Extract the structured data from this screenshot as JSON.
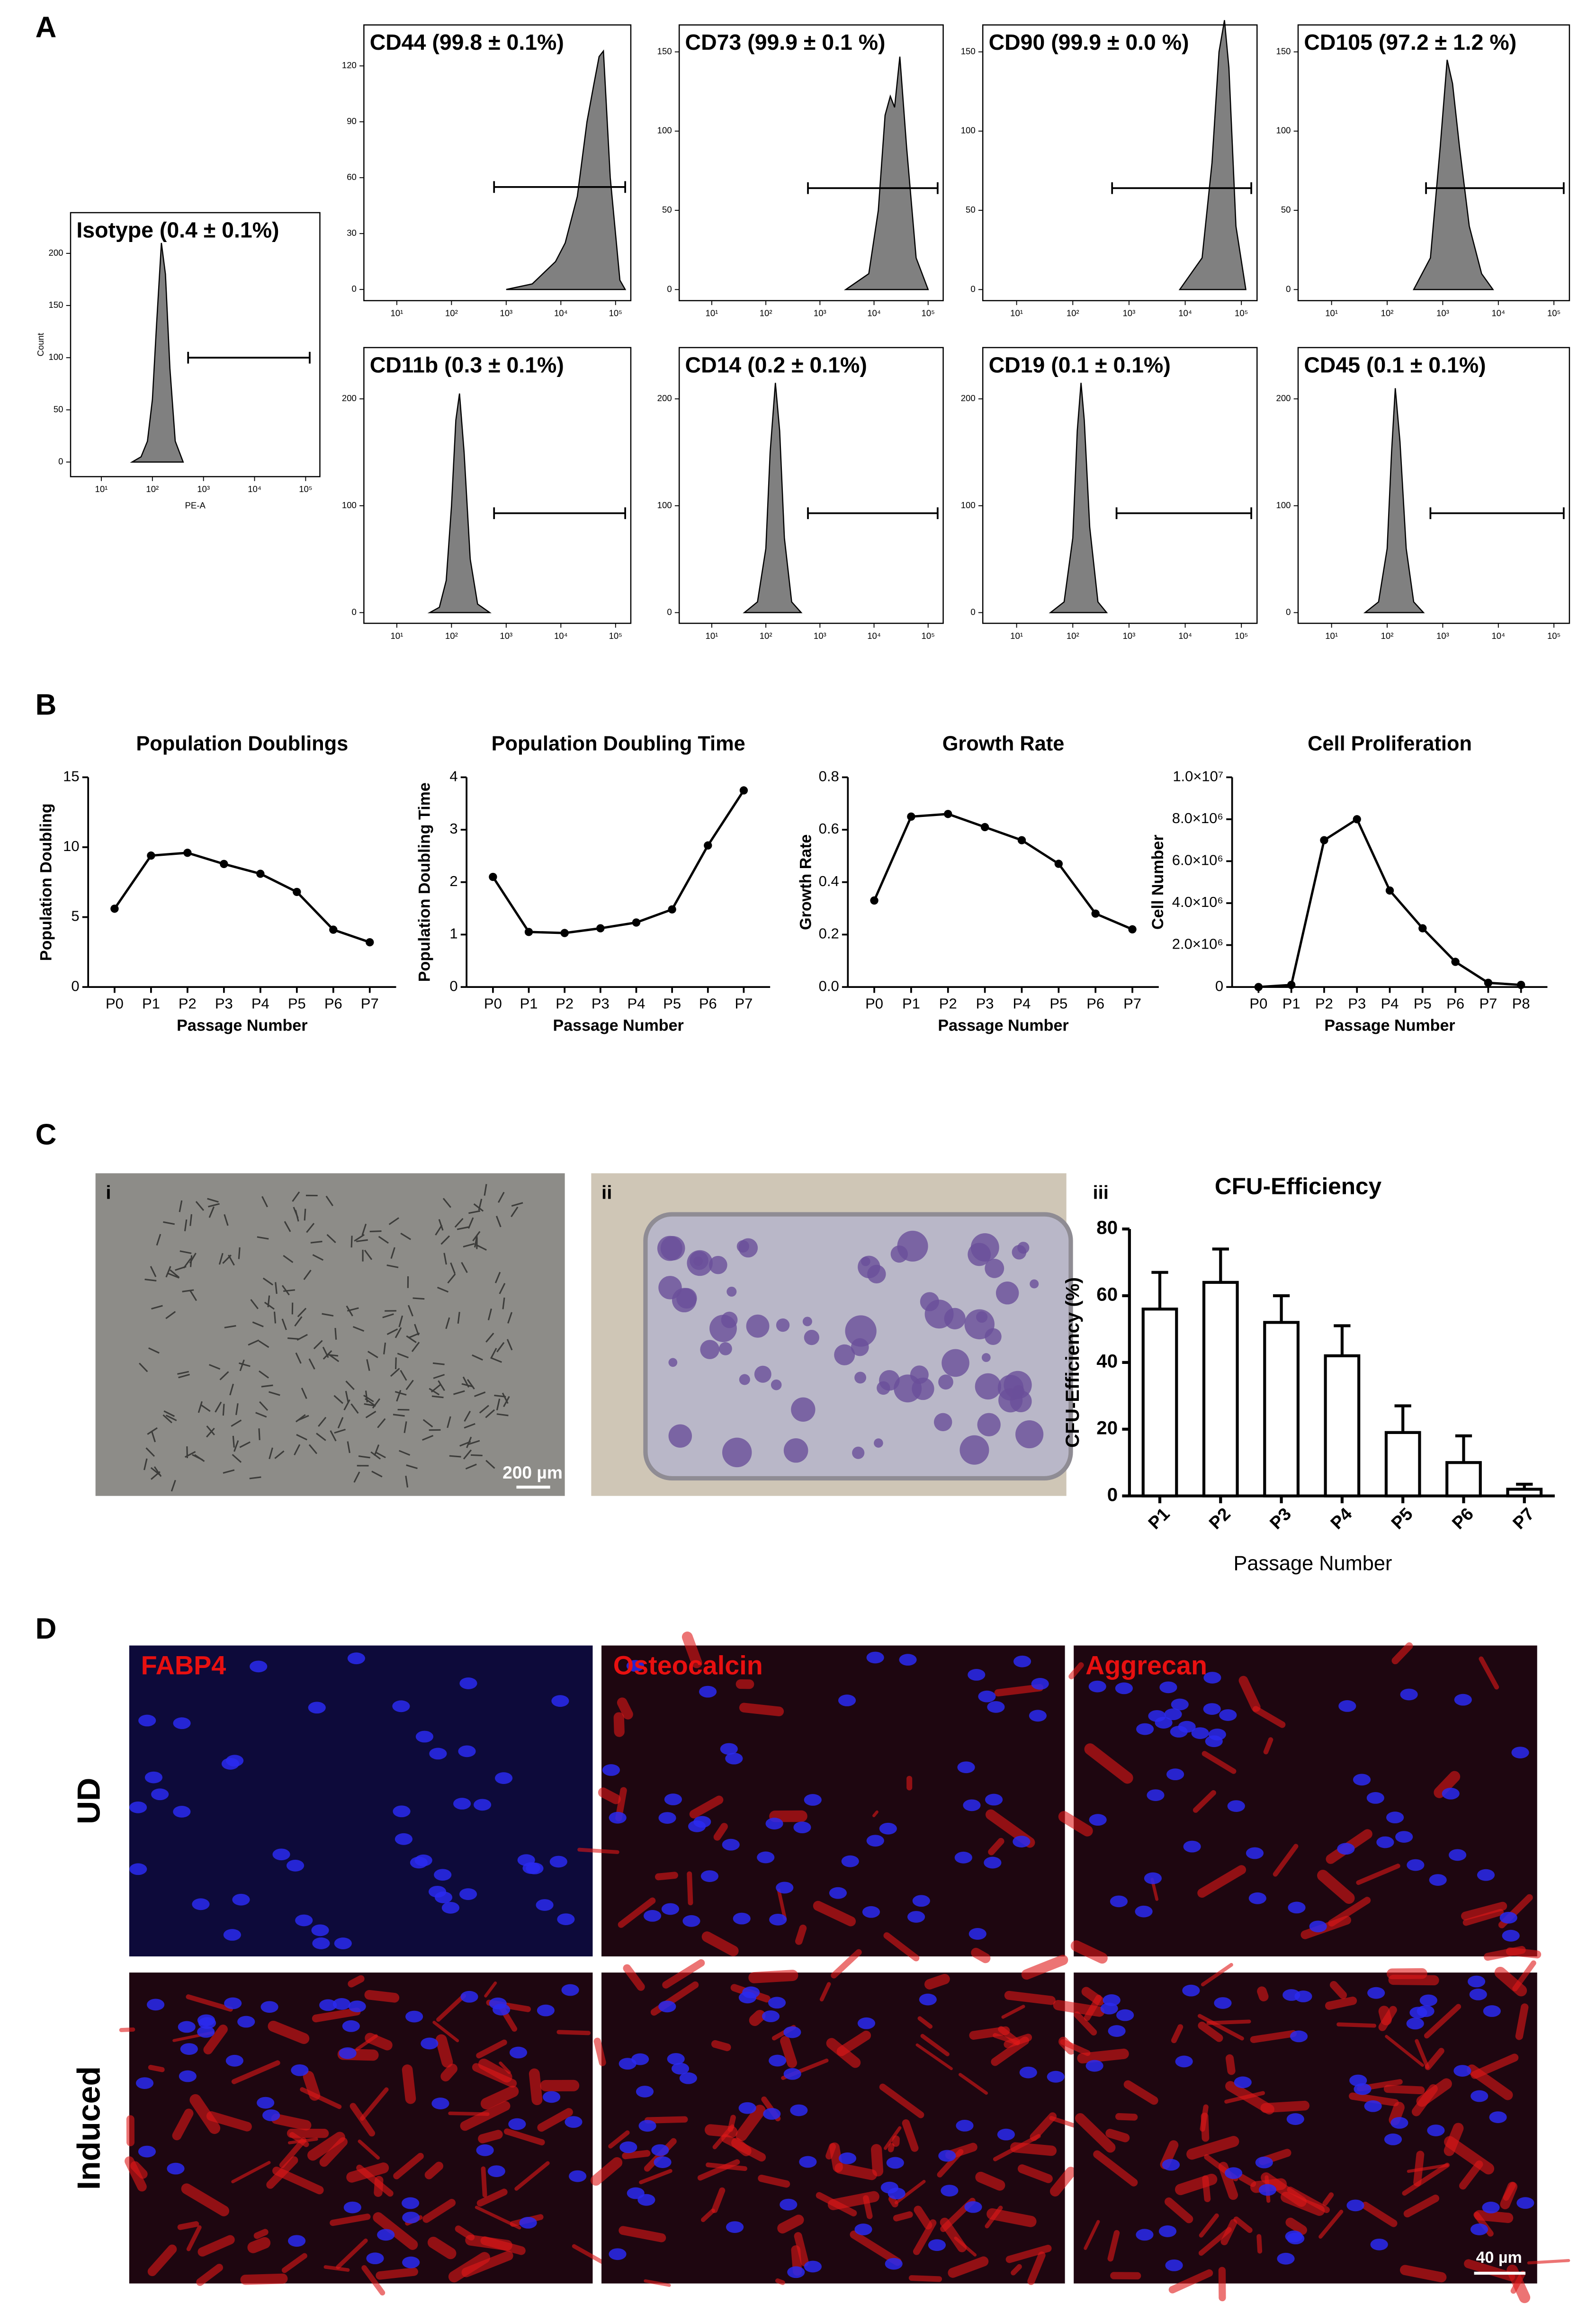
{
  "panel_labels": [
    "A",
    "B",
    "C",
    "D"
  ],
  "photos": {
    "colony_label": "i",
    "flask_label": "ii",
    "scale_bar": "200 µm"
  },
  "staining": {
    "columns": [
      "FABP4",
      "Osteocalcin",
      "Aggrecan"
    ],
    "rows": [
      "UD",
      "Induced"
    ],
    "scale_bar": "40 µm"
  },
  "chart_data": [
    {
      "type": "area",
      "xscale": "log",
      "title": "Isotype (0.4 ± 0.1%)",
      "xlabel": "PE-A",
      "ylabel": "Count",
      "color": "#808080",
      "x": [
        40,
        60,
        80,
        100,
        120,
        150,
        180,
        220,
        280,
        400
      ],
      "values": [
        0,
        5,
        20,
        60,
        130,
        210,
        180,
        90,
        20,
        0
      ],
      "gate": {
        "from": 500,
        "to": 120000,
        "level": 100
      },
      "xlim": [
        2.5,
        190000
      ],
      "ylim": [
        -14,
        239
      ],
      "xticks": [
        {
          "value": 10,
          "label": "10¹"
        },
        {
          "value": 100,
          "label": "10²"
        },
        {
          "value": 1000,
          "label": "10³"
        },
        {
          "value": 10000,
          "label": "10⁴"
        },
        {
          "value": 100000,
          "label": "10⁵"
        }
      ],
      "yticks": [
        0,
        50,
        100,
        150,
        200
      ]
    },
    {
      "type": "area",
      "xscale": "log",
      "title": "CD44 (99.8 ± 0.1%)",
      "color": "#808080",
      "x": [
        1000,
        3000,
        8000,
        12000,
        20000,
        30000,
        40000,
        50000,
        60000,
        80000,
        120000,
        150000
      ],
      "values": [
        0,
        3,
        15,
        25,
        50,
        90,
        110,
        125,
        128,
        60,
        5,
        0
      ],
      "gate": {
        "from": 600,
        "to": 150000,
        "level": 55
      },
      "xlim": [
        2.5,
        190000
      ],
      "ylim": [
        -6,
        142
      ],
      "xticks": [
        {
          "value": 10,
          "label": "10¹"
        },
        {
          "value": 100,
          "label": "10²"
        },
        {
          "value": 1000,
          "label": "10³"
        },
        {
          "value": 10000,
          "label": "10⁴"
        },
        {
          "value": 100000,
          "label": "10⁵"
        }
      ],
      "yticks": [
        0,
        30,
        60,
        90,
        120
      ]
    },
    {
      "type": "area",
      "xscale": "log",
      "title": "CD73 (99.9 ± 0.1 %)",
      "color": "#808080",
      "x": [
        3000,
        8000,
        12000,
        16000,
        20000,
        24000,
        30000,
        40000,
        60000,
        100000
      ],
      "values": [
        0,
        10,
        50,
        110,
        122,
        115,
        147,
        90,
        20,
        0
      ],
      "gate": {
        "from": 600,
        "to": 150000,
        "level": 64
      },
      "xlim": [
        2.5,
        190000
      ],
      "ylim": [
        -7,
        167
      ],
      "xticks": [
        {
          "value": 10,
          "label": "10¹"
        },
        {
          "value": 100,
          "label": "10²"
        },
        {
          "value": 1000,
          "label": "10³"
        },
        {
          "value": 10000,
          "label": "10⁴"
        },
        {
          "value": 100000,
          "label": "10⁵"
        }
      ],
      "yticks": [
        0,
        50,
        100,
        150
      ]
    },
    {
      "type": "area",
      "xscale": "log",
      "title": "CD90 (99.9 ± 0.0 %)",
      "color": "#808080",
      "x": [
        8000,
        20000,
        30000,
        40000,
        50000,
        60000,
        80000,
        120000
      ],
      "values": [
        0,
        20,
        80,
        150,
        170,
        140,
        40,
        0
      ],
      "gate": {
        "from": 500,
        "to": 150000,
        "level": 64
      },
      "xlim": [
        2.5,
        190000
      ],
      "ylim": [
        -7,
        167
      ],
      "xticks": [
        {
          "value": 10,
          "label": "10¹"
        },
        {
          "value": 100,
          "label": "10²"
        },
        {
          "value": 1000,
          "label": "10³"
        },
        {
          "value": 10000,
          "label": "10⁴"
        },
        {
          "value": 100000,
          "label": "10⁵"
        }
      ],
      "yticks": [
        0,
        50,
        100,
        150
      ]
    },
    {
      "type": "area",
      "xscale": "log",
      "title": "CD105 (97.2 ± 1.2 %)",
      "color": "#808080",
      "x": [
        300,
        600,
        900,
        1200,
        1500,
        2000,
        3000,
        5000,
        8000
      ],
      "values": [
        0,
        20,
        90,
        145,
        130,
        90,
        40,
        10,
        0
      ],
      "gate": {
        "from": 500,
        "to": 150000,
        "level": 64
      },
      "xlim": [
        2.5,
        190000
      ],
      "ylim": [
        -7,
        167
      ],
      "xticks": [
        {
          "value": 10,
          "label": "10¹"
        },
        {
          "value": 100,
          "label": "10²"
        },
        {
          "value": 1000,
          "label": "10³"
        },
        {
          "value": 10000,
          "label": "10⁴"
        },
        {
          "value": 100000,
          "label": "10⁵"
        }
      ],
      "yticks": [
        0,
        50,
        100,
        150
      ]
    },
    {
      "type": "area",
      "xscale": "log",
      "title": "CD11b (0.3 ± 0.1%)",
      "color": "#808080",
      "x": [
        40,
        60,
        80,
        100,
        120,
        140,
        170,
        220,
        300,
        500
      ],
      "values": [
        0,
        5,
        30,
        100,
        180,
        205,
        150,
        50,
        8,
        0
      ],
      "gate": {
        "from": 600,
        "to": 150000,
        "level": 93
      },
      "xlim": [
        2.5,
        190000
      ],
      "ylim": [
        -10,
        248
      ],
      "xticks": [
        {
          "value": 10,
          "label": "10¹"
        },
        {
          "value": 100,
          "label": "10²"
        },
        {
          "value": 1000,
          "label": "10³"
        },
        {
          "value": 10000,
          "label": "10⁴"
        },
        {
          "value": 100000,
          "label": "10⁵"
        }
      ],
      "yticks": [
        0,
        100,
        200
      ]
    },
    {
      "type": "area",
      "xscale": "log",
      "title": "CD14 (0.2 ± 0.1%)",
      "color": "#808080",
      "x": [
        40,
        70,
        100,
        120,
        150,
        180,
        220,
        300,
        450
      ],
      "values": [
        0,
        10,
        60,
        150,
        215,
        170,
        70,
        10,
        0
      ],
      "gate": {
        "from": 600,
        "to": 150000,
        "level": 93
      },
      "xlim": [
        2.5,
        190000
      ],
      "ylim": [
        -10,
        248
      ],
      "xticks": [
        {
          "value": 10,
          "label": "10¹"
        },
        {
          "value": 100,
          "label": "10²"
        },
        {
          "value": 1000,
          "label": "10³"
        },
        {
          "value": 10000,
          "label": "10⁴"
        },
        {
          "value": 100000,
          "label": "10⁵"
        }
      ],
      "yticks": [
        0,
        100,
        200
      ]
    },
    {
      "type": "area",
      "xscale": "log",
      "title": "CD19 (0.1 ± 0.1%)",
      "color": "#808080",
      "x": [
        40,
        70,
        100,
        120,
        140,
        160,
        200,
        280,
        400
      ],
      "values": [
        0,
        10,
        70,
        170,
        215,
        180,
        80,
        10,
        0
      ],
      "gate": {
        "from": 600,
        "to": 150000,
        "level": 93
      },
      "xlim": [
        2.5,
        190000
      ],
      "ylim": [
        -10,
        248
      ],
      "xticks": [
        {
          "value": 10,
          "label": "10¹"
        },
        {
          "value": 100,
          "label": "10²"
        },
        {
          "value": 1000,
          "label": "10³"
        },
        {
          "value": 10000,
          "label": "10⁴"
        },
        {
          "value": 100000,
          "label": "10⁵"
        }
      ],
      "yticks": [
        0,
        100,
        200
      ]
    },
    {
      "type": "area",
      "xscale": "log",
      "title": "CD45 (0.1 ± 0.1%)",
      "color": "#808080",
      "x": [
        40,
        70,
        100,
        120,
        140,
        170,
        220,
        300,
        450
      ],
      "values": [
        0,
        10,
        60,
        150,
        210,
        160,
        60,
        10,
        0
      ],
      "gate": {
        "from": 600,
        "to": 150000,
        "level": 93
      },
      "xlim": [
        2.5,
        190000
      ],
      "ylim": [
        -10,
        248
      ],
      "xticks": [
        {
          "value": 10,
          "label": "10¹"
        },
        {
          "value": 100,
          "label": "10²"
        },
        {
          "value": 1000,
          "label": "10³"
        },
        {
          "value": 10000,
          "label": "10⁴"
        },
        {
          "value": 100000,
          "label": "10⁵"
        }
      ],
      "yticks": [
        0,
        100,
        200
      ]
    },
    {
      "type": "line",
      "title": "Population Doublings",
      "xlabel": "Passage Number",
      "ylabel": "Population Doubling",
      "color": "#000000",
      "categories": [
        "P0",
        "P1",
        "P2",
        "P3",
        "P4",
        "P5",
        "P6",
        "P7"
      ],
      "values": [
        5.6,
        9.4,
        9.6,
        8.8,
        8.1,
        6.8,
        4.1,
        3.2
      ],
      "ylim": [
        0,
        15
      ],
      "yticks": [
        0,
        5,
        10,
        15
      ]
    },
    {
      "type": "line",
      "title": "Population Doubling Time",
      "xlabel": "Passage Number",
      "ylabel": "Population Doubling Time",
      "color": "#000000",
      "categories": [
        "P0",
        "P1",
        "P2",
        "P3",
        "P4",
        "P5",
        "P6",
        "P7"
      ],
      "values": [
        2.1,
        1.05,
        1.03,
        1.12,
        1.23,
        1.48,
        2.7,
        3.75
      ],
      "ylim": [
        0,
        4
      ],
      "yticks": [
        0,
        1,
        2,
        3,
        4
      ]
    },
    {
      "type": "line",
      "title": "Growth Rate",
      "xlabel": "Passage Number",
      "ylabel": "Growth Rate",
      "color": "#000000",
      "categories": [
        "P0",
        "P1",
        "P2",
        "P3",
        "P4",
        "P5",
        "P6",
        "P7"
      ],
      "values": [
        0.33,
        0.65,
        0.66,
        0.61,
        0.56,
        0.47,
        0.28,
        0.22
      ],
      "ylim": [
        0,
        0.8
      ],
      "yticks": [
        {
          "value": 0,
          "label": "0.0"
        },
        0.2,
        0.4,
        0.6,
        0.8
      ]
    },
    {
      "type": "line",
      "title": "Cell Proliferation",
      "xlabel": "Passage Number",
      "ylabel": "Cell Number",
      "color": "#000000",
      "categories": [
        "P0",
        "P1",
        "P2",
        "P3",
        "P4",
        "P5",
        "P6",
        "P7",
        "P8"
      ],
      "values": [
        0,
        100000,
        7000000,
        8000000,
        4600000,
        2800000,
        1200000,
        200000,
        100000
      ],
      "ylim": [
        0,
        10000000
      ],
      "yticks": [
        0,
        {
          "value": 2000000,
          "label": "2.0×10⁶"
        },
        {
          "value": 4000000,
          "label": "4.0×10⁶"
        },
        {
          "value": 6000000,
          "label": "6.0×10⁶"
        },
        {
          "value": 8000000,
          "label": "8.0×10⁶"
        },
        {
          "value": 10000000,
          "label": "1.0×10⁷"
        }
      ]
    },
    {
      "type": "bar",
      "panel_label": "iii",
      "title": "CFU-Efficiency",
      "xlabel": "Passage Number",
      "ylabel": "CFU-Efficiency (%)",
      "color": "#ffffff",
      "categories": [
        "P1",
        "P2",
        "P3",
        "P4",
        "P5",
        "P6",
        "P7"
      ],
      "values": [
        56,
        64,
        52,
        42,
        19,
        10,
        2
      ],
      "errors": [
        11,
        10,
        8,
        9,
        8,
        8,
        1.5
      ],
      "ylim": [
        0,
        80
      ],
      "yticks": [
        0,
        20,
        40,
        60,
        80
      ]
    }
  ]
}
